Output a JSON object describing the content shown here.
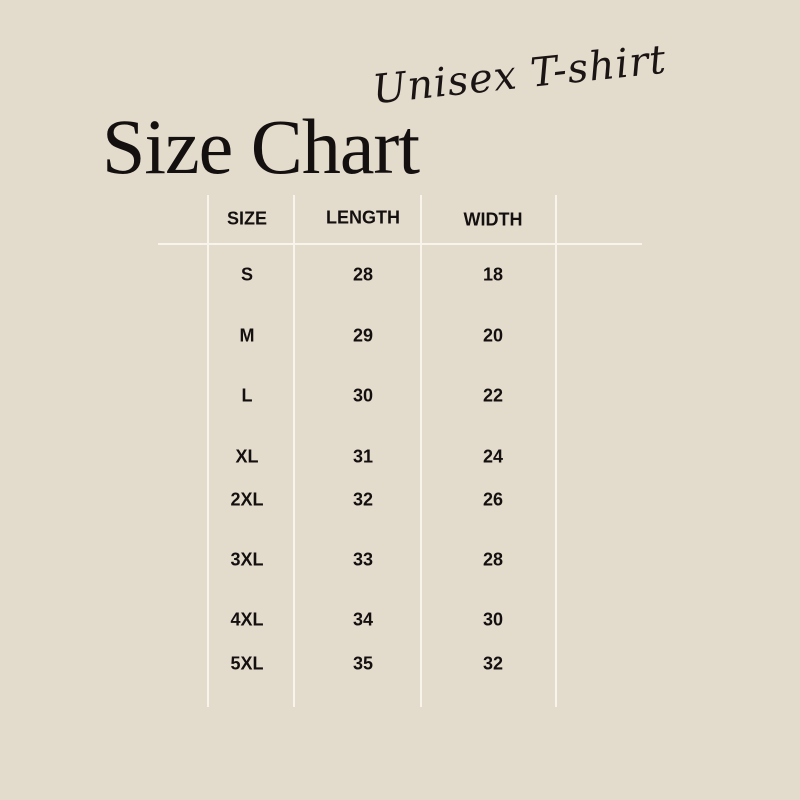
{
  "header": {
    "subtitle": "Unisex T-shirt",
    "title": "Size Chart"
  },
  "table": {
    "columns": [
      "SIZE",
      "LENGTH",
      "WIDTH"
    ],
    "rows": [
      [
        "S",
        "28",
        "18"
      ],
      [
        "M",
        "29",
        "20"
      ],
      [
        "L",
        "30",
        "22"
      ],
      [
        "XL",
        "31",
        "24"
      ],
      [
        "2XL",
        "32",
        "26"
      ],
      [
        "3XL",
        "33",
        "28"
      ],
      [
        "4XL",
        "34",
        "30"
      ],
      [
        "5XL",
        "35",
        "32"
      ]
    ]
  },
  "colors": {
    "background": "#e3dbcc",
    "text": "#141010",
    "lines": "#f8f4ec"
  }
}
